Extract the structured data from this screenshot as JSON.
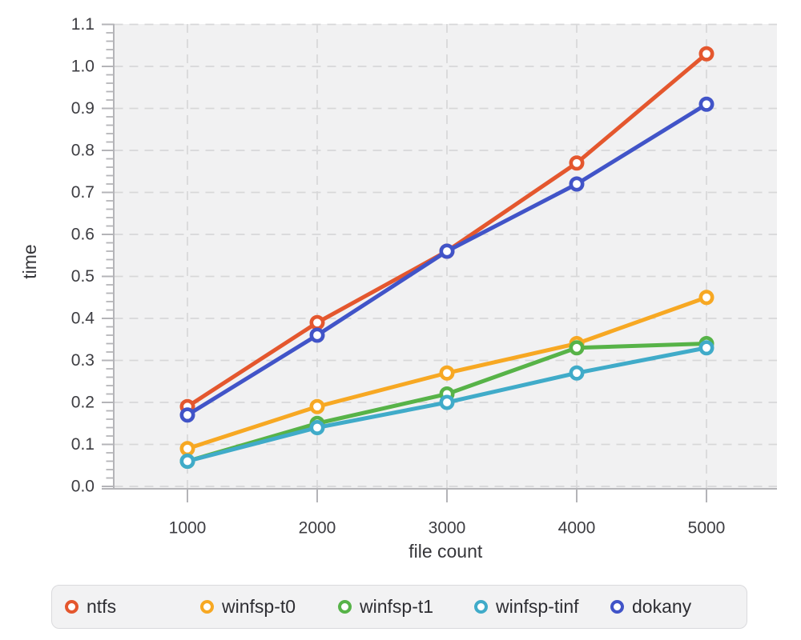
{
  "chart_data": {
    "type": "line",
    "title": "",
    "xlabel": "file count",
    "ylabel": "time",
    "x": [
      1000,
      2000,
      3000,
      4000,
      5000
    ],
    "xlim": [
      1000,
      5000
    ],
    "ylim": [
      0.0,
      1.1
    ],
    "ytick_step": 0.1,
    "ytick_minor_step": 0.02,
    "grid": "dashed",
    "legend_position": "bottom",
    "marker_style": "open-circle",
    "series": [
      {
        "name": "ntfs",
        "color": "#e4572e",
        "values": [
          0.19,
          0.39,
          0.56,
          0.77,
          1.03
        ]
      },
      {
        "name": "winfsp-t0",
        "color": "#f7a823",
        "values": [
          0.09,
          0.19,
          0.27,
          0.34,
          0.45
        ]
      },
      {
        "name": "winfsp-t1",
        "color": "#57b348",
        "values": [
          0.06,
          0.15,
          0.22,
          0.33,
          0.34
        ]
      },
      {
        "name": "winfsp-tinf",
        "color": "#40abc9",
        "values": [
          0.06,
          0.14,
          0.2,
          0.27,
          0.33
        ]
      },
      {
        "name": "dokany",
        "color": "#4154c8",
        "values": [
          0.17,
          0.36,
          0.56,
          0.72,
          0.91
        ]
      }
    ],
    "colors": {
      "plot_background": "#f1f1f2",
      "grid_line": "#d7d7d9",
      "axis_line": "#b4b4b8",
      "tick_text": "#3d3d42"
    }
  }
}
